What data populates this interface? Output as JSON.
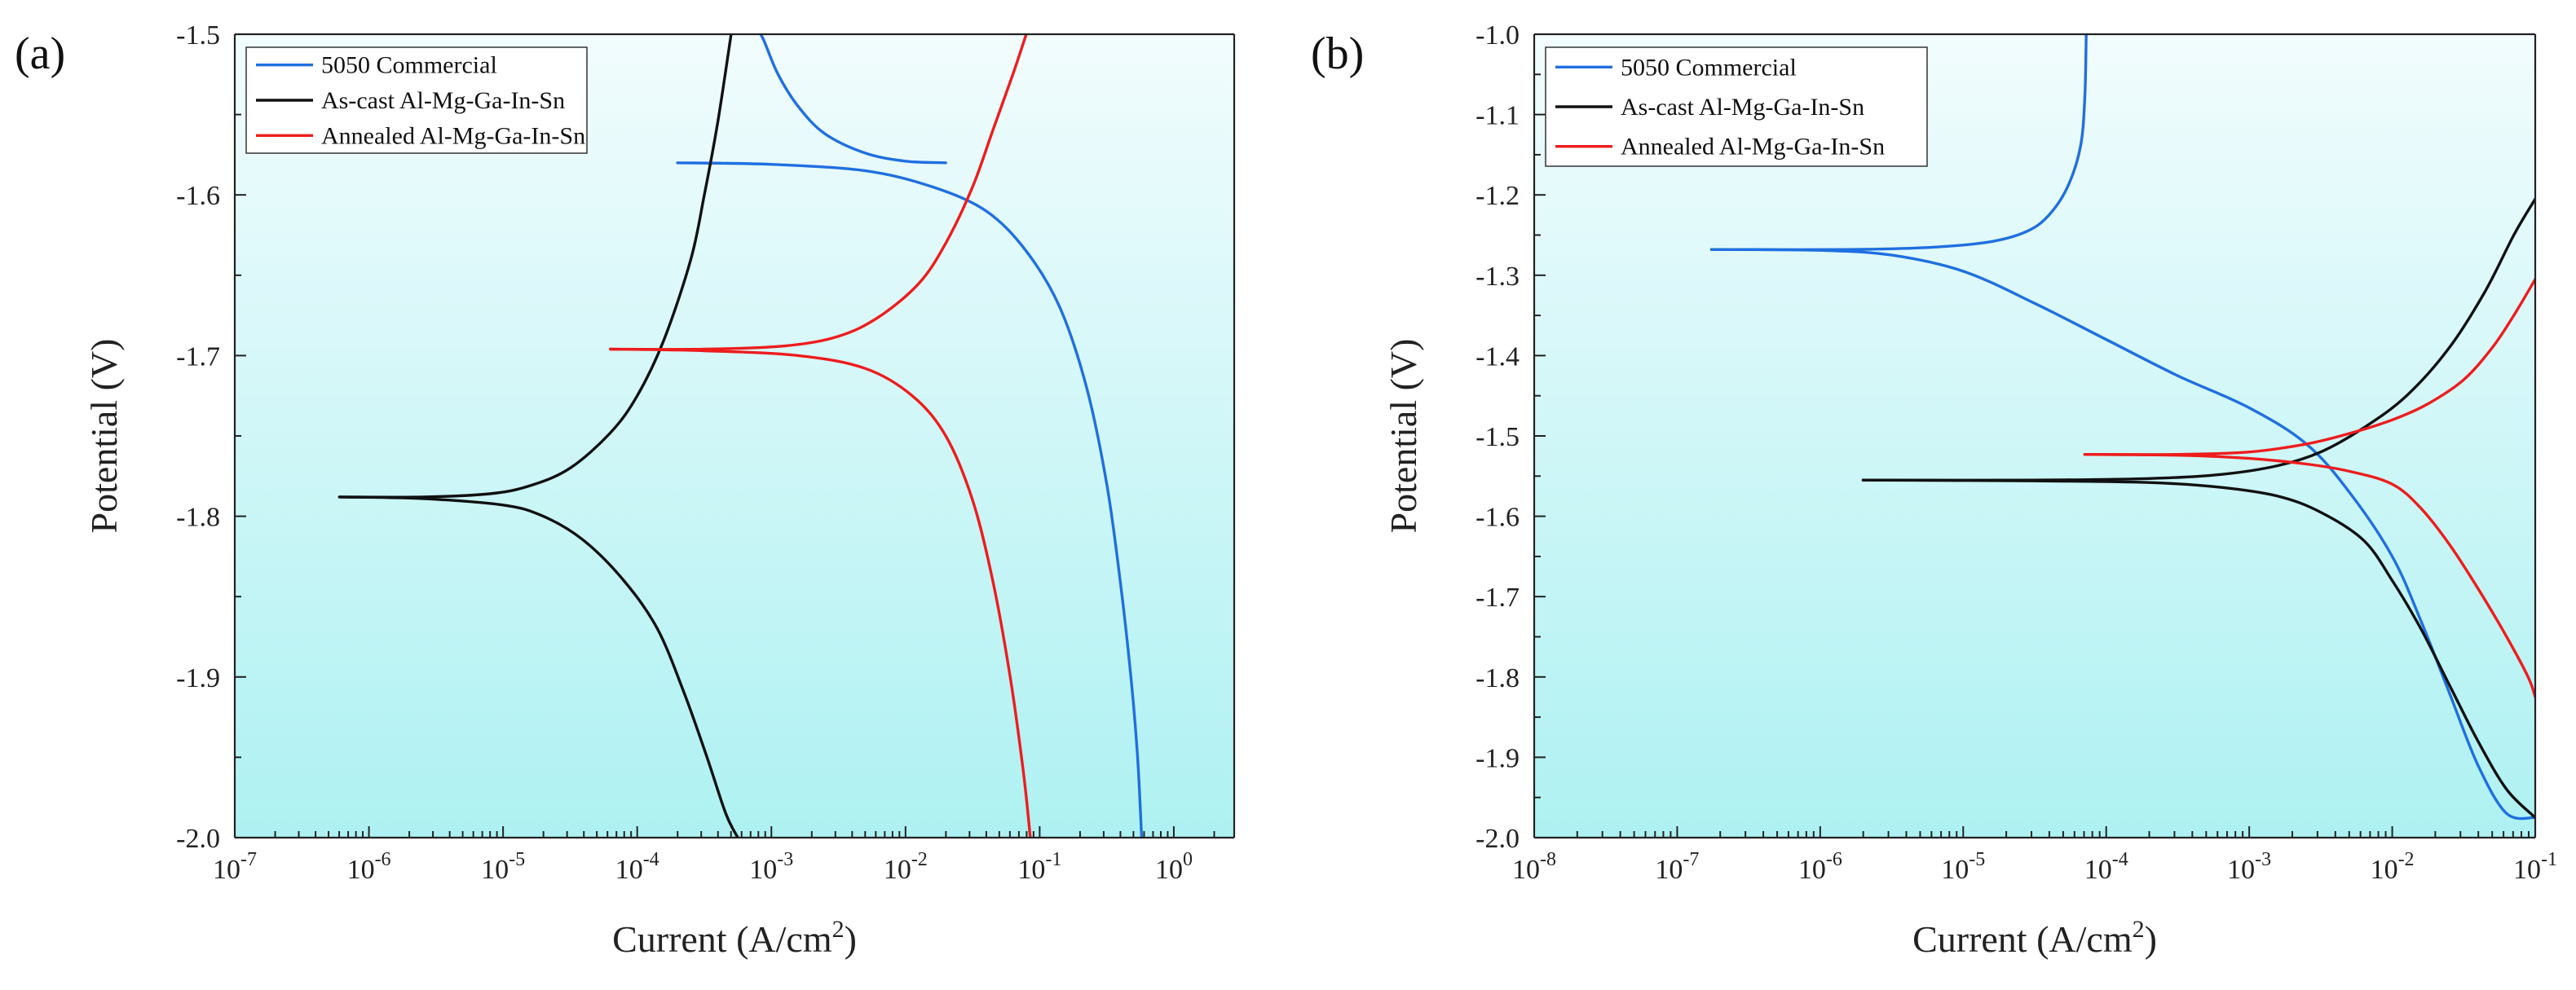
{
  "colors": {
    "commercial": "#1f6fe0",
    "as_cast": "#111111",
    "annealed": "#ee1c1c",
    "plot_bg_top": "#f2fcfd",
    "plot_bg_bottom": "#aef1f2"
  },
  "chart_data": [
    {
      "id": "a",
      "panel_label": "(a)",
      "type": "line",
      "xscale": "log",
      "xlabel": "Current (A/cm",
      "xlabel_sup": "2",
      "xlabel_end": ")",
      "ylabel": "Potential (V)",
      "xlim_exp": [
        -7,
        0.45
      ],
      "ylim": [
        -2.0,
        -1.5
      ],
      "xticks": [
        {
          "exp": -7,
          "base": "10",
          "sup": "-7"
        },
        {
          "exp": -6,
          "base": "10",
          "sup": "-6"
        },
        {
          "exp": -5,
          "base": "10",
          "sup": "-5"
        },
        {
          "exp": -4,
          "base": "10",
          "sup": "-4"
        },
        {
          "exp": -3,
          "base": "10",
          "sup": "-3"
        },
        {
          "exp": -2,
          "base": "10",
          "sup": "-2"
        },
        {
          "exp": -1,
          "base": "10",
          "sup": "-1"
        },
        {
          "exp": 0,
          "base": "10",
          "sup": "0"
        }
      ],
      "yticks": [
        {
          "value": -2.0,
          "label": "-2.0"
        },
        {
          "value": -1.9,
          "label": "-1.9"
        },
        {
          "value": -1.8,
          "label": "-1.8"
        },
        {
          "value": -1.7,
          "label": "-1.7"
        },
        {
          "value": -1.6,
          "label": "-1.6"
        },
        {
          "value": -1.5,
          "label": "-1.5"
        }
      ],
      "legend_position": "top-left",
      "legend": [
        "5050 Commercial",
        "As-cast Al-Mg-Ga-In-Sn",
        "Annealed Al-Mg-Ga-In-Sn"
      ],
      "series": [
        {
          "name": "5050 Commercial",
          "color_key": "commercial",
          "points": [
            [
              -1.7,
              -1.58
            ],
            [
              -2.0,
              -1.579
            ],
            [
              -2.3,
              -1.574
            ],
            [
              -2.6,
              -1.562
            ],
            [
              -2.8,
              -1.545
            ],
            [
              -2.95,
              -1.525
            ],
            [
              -3.05,
              -1.505
            ],
            [
              -3.08,
              -1.5
            ]
          ]
        },
        {
          "name": "5050 Commercial",
          "color_key": "commercial",
          "points": [
            [
              -3.7,
              -1.58
            ],
            [
              -3.0,
              -1.581
            ],
            [
              -2.3,
              -1.585
            ],
            [
              -1.8,
              -1.595
            ],
            [
              -1.4,
              -1.61
            ],
            [
              -1.1,
              -1.635
            ],
            [
              -0.85,
              -1.67
            ],
            [
              -0.65,
              -1.72
            ],
            [
              -0.5,
              -1.78
            ],
            [
              -0.4,
              -1.84
            ],
            [
              -0.32,
              -1.9
            ],
            [
              -0.27,
              -1.95
            ],
            [
              -0.24,
              -2.0
            ]
          ]
        },
        {
          "name": "As-cast Al-Mg-Ga-In-Sn",
          "color_key": "as_cast",
          "points": [
            [
              -6.22,
              -1.788
            ],
            [
              -5.6,
              -1.788
            ],
            [
              -5.1,
              -1.786
            ],
            [
              -4.8,
              -1.781
            ],
            [
              -4.5,
              -1.77
            ],
            [
              -4.2,
              -1.748
            ],
            [
              -4.0,
              -1.725
            ],
            [
              -3.8,
              -1.69
            ],
            [
              -3.6,
              -1.64
            ],
            [
              -3.5,
              -1.6
            ],
            [
              -3.4,
              -1.555
            ],
            [
              -3.3,
              -1.5
            ]
          ]
        },
        {
          "name": "As-cast Al-Mg-Ga-In-Sn",
          "color_key": "as_cast",
          "points": [
            [
              -6.22,
              -1.788
            ],
            [
              -5.6,
              -1.789
            ],
            [
              -5.0,
              -1.793
            ],
            [
              -4.7,
              -1.8
            ],
            [
              -4.4,
              -1.815
            ],
            [
              -4.1,
              -1.84
            ],
            [
              -3.85,
              -1.87
            ],
            [
              -3.65,
              -1.91
            ],
            [
              -3.48,
              -1.95
            ],
            [
              -3.34,
              -1.985
            ],
            [
              -3.25,
              -2.0
            ]
          ]
        },
        {
          "name": "Annealed Al-Mg-Ga-In-Sn",
          "color_key": "annealed",
          "points": [
            [
              -4.2,
              -1.696
            ],
            [
              -3.5,
              -1.696
            ],
            [
              -2.9,
              -1.694
            ],
            [
              -2.5,
              -1.688
            ],
            [
              -2.2,
              -1.676
            ],
            [
              -1.9,
              -1.655
            ],
            [
              -1.7,
              -1.63
            ],
            [
              -1.5,
              -1.595
            ],
            [
              -1.35,
              -1.56
            ],
            [
              -1.2,
              -1.525
            ],
            [
              -1.1,
              -1.5
            ]
          ]
        },
        {
          "name": "Annealed Al-Mg-Ga-In-Sn",
          "color_key": "annealed",
          "points": [
            [
              -4.2,
              -1.696
            ],
            [
              -3.5,
              -1.697
            ],
            [
              -2.8,
              -1.7
            ],
            [
              -2.3,
              -1.708
            ],
            [
              -1.95,
              -1.725
            ],
            [
              -1.7,
              -1.75
            ],
            [
              -1.5,
              -1.79
            ],
            [
              -1.35,
              -1.84
            ],
            [
              -1.22,
              -1.9
            ],
            [
              -1.12,
              -1.96
            ],
            [
              -1.07,
              -2.0
            ]
          ]
        }
      ]
    },
    {
      "id": "b",
      "panel_label": "(b)",
      "type": "line",
      "xscale": "log",
      "xlabel": "Current (A/cm",
      "xlabel_sup": "2",
      "xlabel_end": ")",
      "ylabel": "Potential (V)",
      "xlim_exp": [
        -8,
        -1
      ],
      "ylim": [
        -2.0,
        -1.0
      ],
      "xticks": [
        {
          "exp": -8,
          "base": "10",
          "sup": "-8"
        },
        {
          "exp": -7,
          "base": "10",
          "sup": "-7"
        },
        {
          "exp": -6,
          "base": "10",
          "sup": "-6"
        },
        {
          "exp": -5,
          "base": "10",
          "sup": "-5"
        },
        {
          "exp": -4,
          "base": "10",
          "sup": "-4"
        },
        {
          "exp": -3,
          "base": "10",
          "sup": "-3"
        },
        {
          "exp": -2,
          "base": "10",
          "sup": "-2"
        },
        {
          "exp": -1,
          "base": "10",
          "sup": "-1"
        }
      ],
      "yticks": [
        {
          "value": -2.0,
          "label": "-2.0"
        },
        {
          "value": -1.9,
          "label": "-1.9"
        },
        {
          "value": -1.8,
          "label": "-1.8"
        },
        {
          "value": -1.7,
          "label": "-1.7"
        },
        {
          "value": -1.6,
          "label": "-1.6"
        },
        {
          "value": -1.5,
          "label": "-1.5"
        },
        {
          "value": -1.4,
          "label": "-1.4"
        },
        {
          "value": -1.3,
          "label": "-1.3"
        },
        {
          "value": -1.2,
          "label": "-1.2"
        },
        {
          "value": -1.1,
          "label": "-1.1"
        },
        {
          "value": -1.0,
          "label": "-1.0"
        }
      ],
      "legend_position": "top-left",
      "legend": [
        "5050 Commercial",
        "As-cast Al-Mg-Ga-In-Sn",
        "Annealed Al-Mg-Ga-In-Sn"
      ],
      "series": [
        {
          "name": "5050 Commercial",
          "color_key": "commercial",
          "points": [
            [
              -6.76,
              -1.268
            ],
            [
              -5.8,
              -1.268
            ],
            [
              -5.2,
              -1.265
            ],
            [
              -4.8,
              -1.258
            ],
            [
              -4.55,
              -1.245
            ],
            [
              -4.4,
              -1.225
            ],
            [
              -4.27,
              -1.19
            ],
            [
              -4.18,
              -1.14
            ],
            [
              -4.15,
              -1.08
            ],
            [
              -4.14,
              -1.0
            ]
          ]
        },
        {
          "name": "5050 Commercial",
          "color_key": "commercial",
          "points": [
            [
              -6.76,
              -1.268
            ],
            [
              -6.0,
              -1.269
            ],
            [
              -5.5,
              -1.275
            ],
            [
              -5.0,
              -1.295
            ],
            [
              -4.5,
              -1.335
            ],
            [
              -4.0,
              -1.38
            ],
            [
              -3.5,
              -1.425
            ],
            [
              -3.0,
              -1.465
            ],
            [
              -2.6,
              -1.51
            ],
            [
              -2.3,
              -1.57
            ],
            [
              -2.0,
              -1.65
            ],
            [
              -1.8,
              -1.73
            ],
            [
              -1.6,
              -1.82
            ],
            [
              -1.4,
              -1.91
            ],
            [
              -1.2,
              -1.97
            ],
            [
              -1.0,
              -1.975
            ]
          ]
        },
        {
          "name": "As-cast Al-Mg-Ga-In-Sn",
          "color_key": "as_cast",
          "points": [
            [
              -5.7,
              -1.555
            ],
            [
              -4.5,
              -1.555
            ],
            [
              -3.7,
              -1.553
            ],
            [
              -3.2,
              -1.548
            ],
            [
              -2.8,
              -1.537
            ],
            [
              -2.5,
              -1.52
            ],
            [
              -2.2,
              -1.49
            ],
            [
              -1.9,
              -1.45
            ],
            [
              -1.6,
              -1.39
            ],
            [
              -1.35,
              -1.32
            ],
            [
              -1.15,
              -1.25
            ],
            [
              -1.0,
              -1.205
            ]
          ]
        },
        {
          "name": "As-cast Al-Mg-Ga-In-Sn",
          "color_key": "as_cast",
          "points": [
            [
              -5.7,
              -1.555
            ],
            [
              -4.5,
              -1.556
            ],
            [
              -3.7,
              -1.558
            ],
            [
              -3.2,
              -1.564
            ],
            [
              -2.8,
              -1.575
            ],
            [
              -2.5,
              -1.595
            ],
            [
              -2.2,
              -1.63
            ],
            [
              -2.0,
              -1.68
            ],
            [
              -1.8,
              -1.74
            ],
            [
              -1.6,
              -1.81
            ],
            [
              -1.4,
              -1.88
            ],
            [
              -1.2,
              -1.94
            ],
            [
              -1.0,
              -1.975
            ]
          ]
        },
        {
          "name": "Annealed Al-Mg-Ga-In-Sn",
          "color_key": "annealed",
          "points": [
            [
              -4.15,
              -1.523
            ],
            [
              -3.5,
              -1.523
            ],
            [
              -3.0,
              -1.52
            ],
            [
              -2.6,
              -1.51
            ],
            [
              -2.3,
              -1.497
            ],
            [
              -2.0,
              -1.48
            ],
            [
              -1.75,
              -1.46
            ],
            [
              -1.5,
              -1.43
            ],
            [
              -1.3,
              -1.39
            ],
            [
              -1.15,
              -1.35
            ],
            [
              -1.0,
              -1.305
            ]
          ]
        },
        {
          "name": "Annealed Al-Mg-Ga-In-Sn",
          "color_key": "annealed",
          "points": [
            [
              -4.15,
              -1.523
            ],
            [
              -3.5,
              -1.524
            ],
            [
              -3.0,
              -1.528
            ],
            [
              -2.6,
              -1.535
            ],
            [
              -2.3,
              -1.544
            ],
            [
              -2.0,
              -1.56
            ],
            [
              -1.8,
              -1.59
            ],
            [
              -1.6,
              -1.635
            ],
            [
              -1.4,
              -1.69
            ],
            [
              -1.2,
              -1.75
            ],
            [
              -1.05,
              -1.8
            ],
            [
              -1.0,
              -1.825
            ]
          ]
        }
      ]
    }
  ]
}
